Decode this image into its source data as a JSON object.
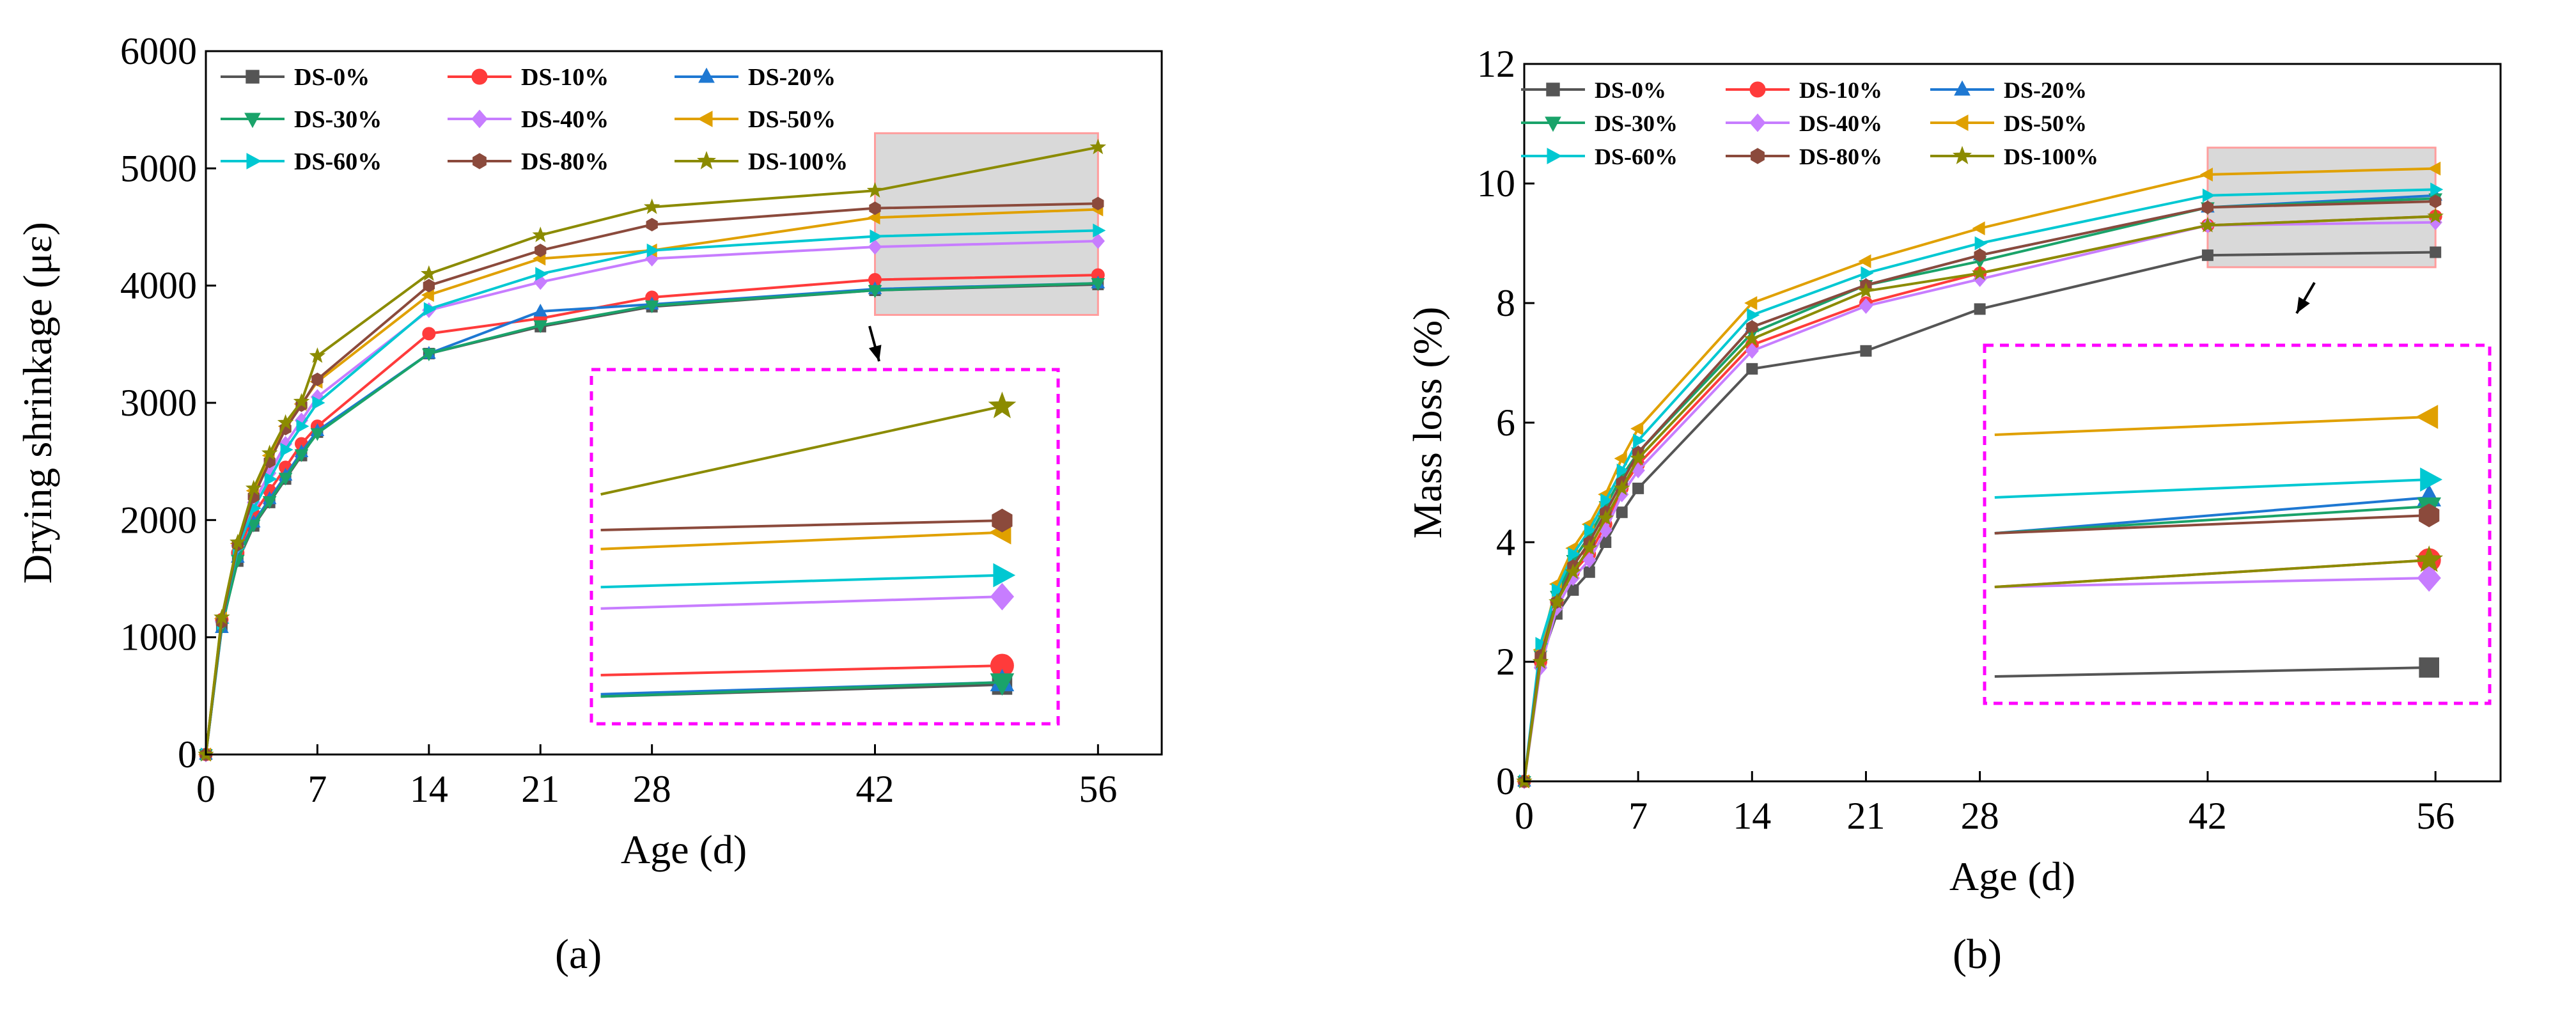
{
  "chart_data": [
    {
      "type": "line",
      "panel_label": "(a)",
      "xlabel": "Age (d)",
      "ylabel": "Drying shrinkage (με)",
      "xlim": [
        0,
        60
      ],
      "ylim": [
        0,
        6000
      ],
      "xticks": [
        0,
        7,
        14,
        21,
        28,
        42,
        56
      ],
      "yticks": [
        0,
        1000,
        2000,
        3000,
        4000,
        5000,
        6000
      ],
      "x": [
        0,
        1,
        2,
        3,
        4,
        5,
        6,
        7,
        14,
        21,
        28,
        42,
        56
      ],
      "legend_position": "top-left",
      "inset": {
        "x_range": [
          42,
          56
        ],
        "y_range": [
          3750,
          5300
        ],
        "note": "magnified view of the gray highlighted region"
      },
      "series": [
        {
          "name": "DS-0%",
          "color": "#555555",
          "marker": "square",
          "values": [
            0,
            1100,
            1650,
            1950,
            2150,
            2350,
            2550,
            2750,
            3420,
            3650,
            3820,
            3960,
            4010
          ]
        },
        {
          "name": "DS-10%",
          "color": "#ff3b3b",
          "marker": "circle",
          "values": [
            0,
            1150,
            1720,
            2050,
            2250,
            2450,
            2650,
            2800,
            3590,
            3720,
            3900,
            4050,
            4090
          ]
        },
        {
          "name": "DS-20%",
          "color": "#1e78d2",
          "marker": "triangle-up",
          "values": [
            0,
            1080,
            1680,
            1980,
            2180,
            2380,
            2580,
            2760,
            3420,
            3780,
            3840,
            3970,
            4020
          ]
        },
        {
          "name": "DS-30%",
          "color": "#1aa36a",
          "marker": "triangle-down",
          "values": [
            0,
            1090,
            1660,
            1960,
            2160,
            2360,
            2560,
            2740,
            3420,
            3660,
            3830,
            3960,
            4020
          ]
        },
        {
          "name": "DS-40%",
          "color": "#c77dff",
          "marker": "diamond",
          "values": [
            0,
            1130,
            1780,
            2150,
            2400,
            2650,
            2850,
            3050,
            3790,
            4030,
            4230,
            4330,
            4380
          ]
        },
        {
          "name": "DS-50%",
          "color": "#e0a000",
          "marker": "triangle-left",
          "values": [
            0,
            1160,
            1800,
            2250,
            2550,
            2800,
            2990,
            3180,
            3920,
            4230,
            4300,
            4580,
            4650
          ]
        },
        {
          "name": "DS-60%",
          "color": "#00c8d2",
          "marker": "triangle-right",
          "values": [
            0,
            1120,
            1760,
            2100,
            2350,
            2600,
            2800,
            3000,
            3800,
            4100,
            4300,
            4420,
            4470
          ]
        },
        {
          "name": "DS-80%",
          "color": "#8b4a3c",
          "marker": "hexagon",
          "values": [
            0,
            1130,
            1790,
            2200,
            2500,
            2780,
            2980,
            3200,
            4000,
            4300,
            4520,
            4660,
            4700
          ]
        },
        {
          "name": "DS-100%",
          "color": "#8b8b00",
          "marker": "star",
          "values": [
            0,
            1170,
            1810,
            2270,
            2570,
            2830,
            3010,
            3400,
            4100,
            4430,
            4670,
            4810,
            5180
          ]
        }
      ]
    },
    {
      "type": "line",
      "panel_label": "(b)",
      "xlabel": "Age (d)",
      "ylabel": "Mass loss (%)",
      "xlim": [
        0,
        60
      ],
      "ylim": [
        0,
        12
      ],
      "xticks": [
        0,
        7,
        14,
        21,
        28,
        42,
        56
      ],
      "yticks": [
        0,
        2,
        4,
        6,
        8,
        10,
        12
      ],
      "x": [
        0,
        1,
        2,
        3,
        4,
        5,
        6,
        7,
        14,
        21,
        28,
        42,
        56
      ],
      "legend_position": "top-left",
      "inset": {
        "x_range": [
          42,
          56
        ],
        "y_range": [
          8.6,
          10.6
        ],
        "note": "magnified view of the gray highlighted region"
      },
      "series": [
        {
          "name": "DS-0%",
          "color": "#555555",
          "marker": "square",
          "values": [
            0,
            2.0,
            2.8,
            3.2,
            3.5,
            4.0,
            4.5,
            4.9,
            6.9,
            7.2,
            7.9,
            8.8,
            8.85
          ]
        },
        {
          "name": "DS-10%",
          "color": "#ff3b3b",
          "marker": "circle",
          "values": [
            0,
            2.0,
            3.0,
            3.5,
            3.8,
            4.3,
            4.9,
            5.3,
            7.3,
            8.0,
            8.5,
            9.3,
            9.45
          ]
        },
        {
          "name": "DS-20%",
          "color": "#1e78d2",
          "marker": "triangle-up",
          "values": [
            0,
            2.1,
            3.1,
            3.7,
            4.1,
            4.6,
            5.1,
            5.5,
            7.6,
            8.3,
            8.8,
            9.6,
            9.8
          ]
        },
        {
          "name": "DS-30%",
          "color": "#1aa36a",
          "marker": "triangle-down",
          "values": [
            0,
            2.1,
            3.1,
            3.7,
            4.1,
            4.6,
            5.1,
            5.5,
            7.5,
            8.3,
            8.7,
            9.6,
            9.75
          ]
        },
        {
          "name": "DS-40%",
          "color": "#c77dff",
          "marker": "diamond",
          "values": [
            0,
            1.9,
            2.9,
            3.4,
            3.7,
            4.2,
            4.8,
            5.2,
            7.2,
            7.95,
            8.4,
            9.3,
            9.35
          ]
        },
        {
          "name": "DS-50%",
          "color": "#e0a000",
          "marker": "triangle-left",
          "values": [
            0,
            2.2,
            3.3,
            3.9,
            4.3,
            4.8,
            5.4,
            5.9,
            8.0,
            8.7,
            9.25,
            10.15,
            10.25
          ]
        },
        {
          "name": "DS-60%",
          "color": "#00c8d2",
          "marker": "triangle-right",
          "values": [
            0,
            2.3,
            3.2,
            3.8,
            4.2,
            4.7,
            5.2,
            5.7,
            7.8,
            8.5,
            9.0,
            9.8,
            9.9
          ]
        },
        {
          "name": "DS-80%",
          "color": "#8b4a3c",
          "marker": "hexagon",
          "values": [
            0,
            2.1,
            3.0,
            3.6,
            4.0,
            4.5,
            5.0,
            5.5,
            7.6,
            8.3,
            8.8,
            9.6,
            9.7
          ]
        },
        {
          "name": "DS-100%",
          "color": "#8b8b00",
          "marker": "star",
          "values": [
            0,
            2.0,
            3.0,
            3.5,
            3.9,
            4.4,
            4.9,
            5.4,
            7.4,
            8.2,
            8.5,
            9.3,
            9.45
          ]
        }
      ]
    }
  ]
}
